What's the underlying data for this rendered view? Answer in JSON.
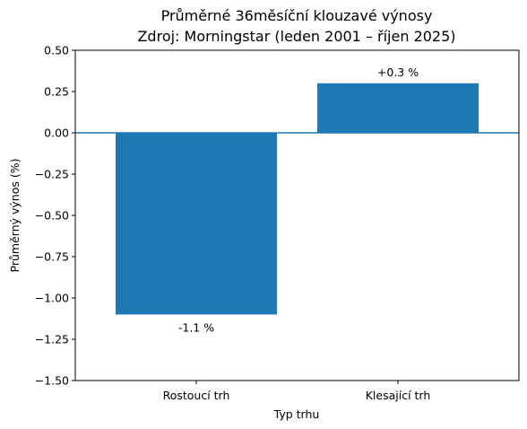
{
  "chart_data": {
    "type": "bar",
    "title": "Průměrné 36měsíční klouzavé výnosy",
    "subtitle": "Zdroj: Morningstar (leden 2001 – říjen 2025)",
    "xlabel": "Typ trhu",
    "ylabel": "Průměrný výnos (%)",
    "categories": [
      "Rostoucí trh",
      "Klesající trh"
    ],
    "values": [
      -1.1,
      0.3
    ],
    "data_labels": [
      "-1.1 %",
      "+0.3 %"
    ],
    "ylim": [
      -1.5,
      0.5
    ],
    "yticks": [
      -1.5,
      -1.25,
      -1.0,
      -0.75,
      -0.5,
      -0.25,
      0.0,
      0.25,
      0.5
    ],
    "ytick_labels": [
      "−1.50",
      "−1.25",
      "−1.00",
      "−0.75",
      "−0.50",
      "−0.25",
      "0.00",
      "0.25",
      "0.50"
    ],
    "reference_line_y": 0,
    "grid": false,
    "bar_color": "#1f77b4",
    "reference_line_color": "#1f77b4"
  }
}
